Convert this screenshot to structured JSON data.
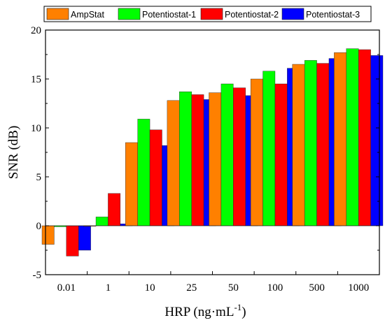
{
  "chart_data": {
    "type": "bar",
    "title": "",
    "xlabel": "HRP (ng·mL",
    "xlabel_sup": "-1",
    "xlabel_suffix": ")",
    "ylabel": "SNR (dB)",
    "ylim": [
      -5,
      20
    ],
    "yticks": [
      -5,
      0,
      5,
      10,
      15,
      20
    ],
    "ytick_labels": [
      "-5",
      "0",
      "5",
      "10",
      "15",
      "20"
    ],
    "grid": false,
    "legend_position": "top",
    "categories": [
      "0.01",
      "1",
      "10",
      "25",
      "50",
      "100",
      "500",
      "1000"
    ],
    "series": [
      {
        "name": "AmpStat",
        "color": "#ff8000",
        "values": [
          -1.9,
          -0.05,
          8.5,
          12.8,
          13.6,
          15.0,
          16.5,
          17.7
        ]
      },
      {
        "name": "Potentiostat-1",
        "color": "#00ff00",
        "values": [
          -0.1,
          0.9,
          10.9,
          13.7,
          14.5,
          15.8,
          16.9,
          18.1
        ]
      },
      {
        "name": "Potentiostat-2",
        "color": "#ff0000",
        "values": [
          -3.1,
          3.3,
          9.8,
          13.4,
          14.1,
          14.5,
          16.6,
          18.0
        ]
      },
      {
        "name": "Potentiostat-3",
        "color": "#0000ff",
        "values": [
          -2.5,
          0.2,
          8.2,
          12.9,
          13.3,
          16.1,
          17.1,
          17.4
        ]
      }
    ]
  }
}
